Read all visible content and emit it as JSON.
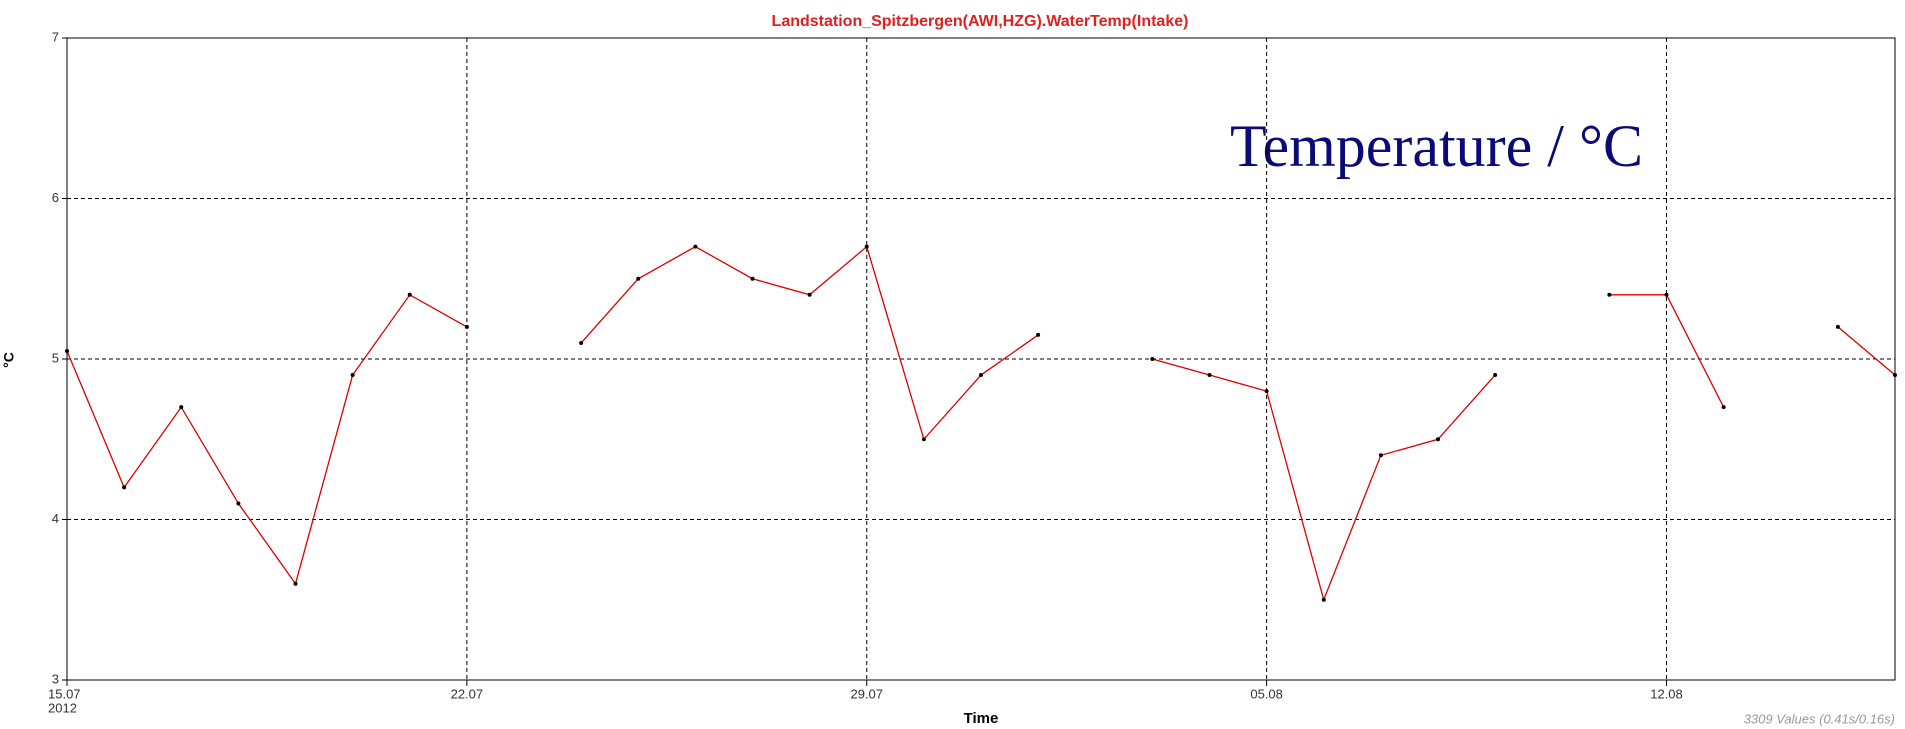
{
  "chart_data": {
    "type": "line",
    "title": "Landstation_Spitzbergen(AWI,HZG).WaterTemp(Intake)",
    "y_label": "°C",
    "x_label": "Time",
    "x_year_label": "2012",
    "annotation": "Temperature / °C",
    "footer": "3309 Values (0.41s/0.16s)",
    "x": [
      "2012-07-15",
      "2012-07-16",
      "2012-07-17",
      "2012-07-18",
      "2012-07-19",
      "2012-07-20",
      "2012-07-21",
      "2012-07-22",
      "2012-07-23",
      "2012-07-24",
      "2012-07-25",
      "2012-07-26",
      "2012-07-27",
      "2012-07-28",
      "2012-07-29",
      "2012-07-30",
      "2012-07-31",
      "2012-08-01",
      "2012-08-02",
      "2012-08-03",
      "2012-08-04",
      "2012-08-05",
      "2012-08-06",
      "2012-08-07",
      "2012-08-08",
      "2012-08-09",
      "2012-08-10",
      "2012-08-11",
      "2012-08-12",
      "2012-08-13",
      "2012-08-14",
      "2012-08-15",
      "2012-08-16"
    ],
    "series": [
      {
        "name": "WaterTemp(Intake)",
        "color": "#dd0000",
        "marker_color": "#000000",
        "values": [
          5.05,
          4.2,
          4.7,
          4.1,
          3.6,
          4.9,
          5.4,
          5.2,
          null,
          5.1,
          5.5,
          5.7,
          5.5,
          5.4,
          5.7,
          4.5,
          4.9,
          5.15,
          null,
          5.0,
          4.9,
          4.8,
          3.5,
          4.4,
          4.5,
          4.9,
          null,
          5.4,
          5.4,
          4.7,
          null,
          5.2,
          4.9
        ]
      }
    ],
    "xlim": [
      "2012-07-15",
      "2012-08-16"
    ],
    "xticks": [
      {
        "value": "2012-07-15",
        "label": "15.07"
      },
      {
        "value": "2012-07-22",
        "label": "22.07"
      },
      {
        "value": "2012-07-29",
        "label": "29.07"
      },
      {
        "value": "2012-08-05",
        "label": "05.08"
      },
      {
        "value": "2012-08-12",
        "label": "12.08"
      }
    ],
    "ylim": [
      3,
      7
    ],
    "yticks": [
      3,
      4,
      5,
      6,
      7
    ],
    "grid": true
  }
}
